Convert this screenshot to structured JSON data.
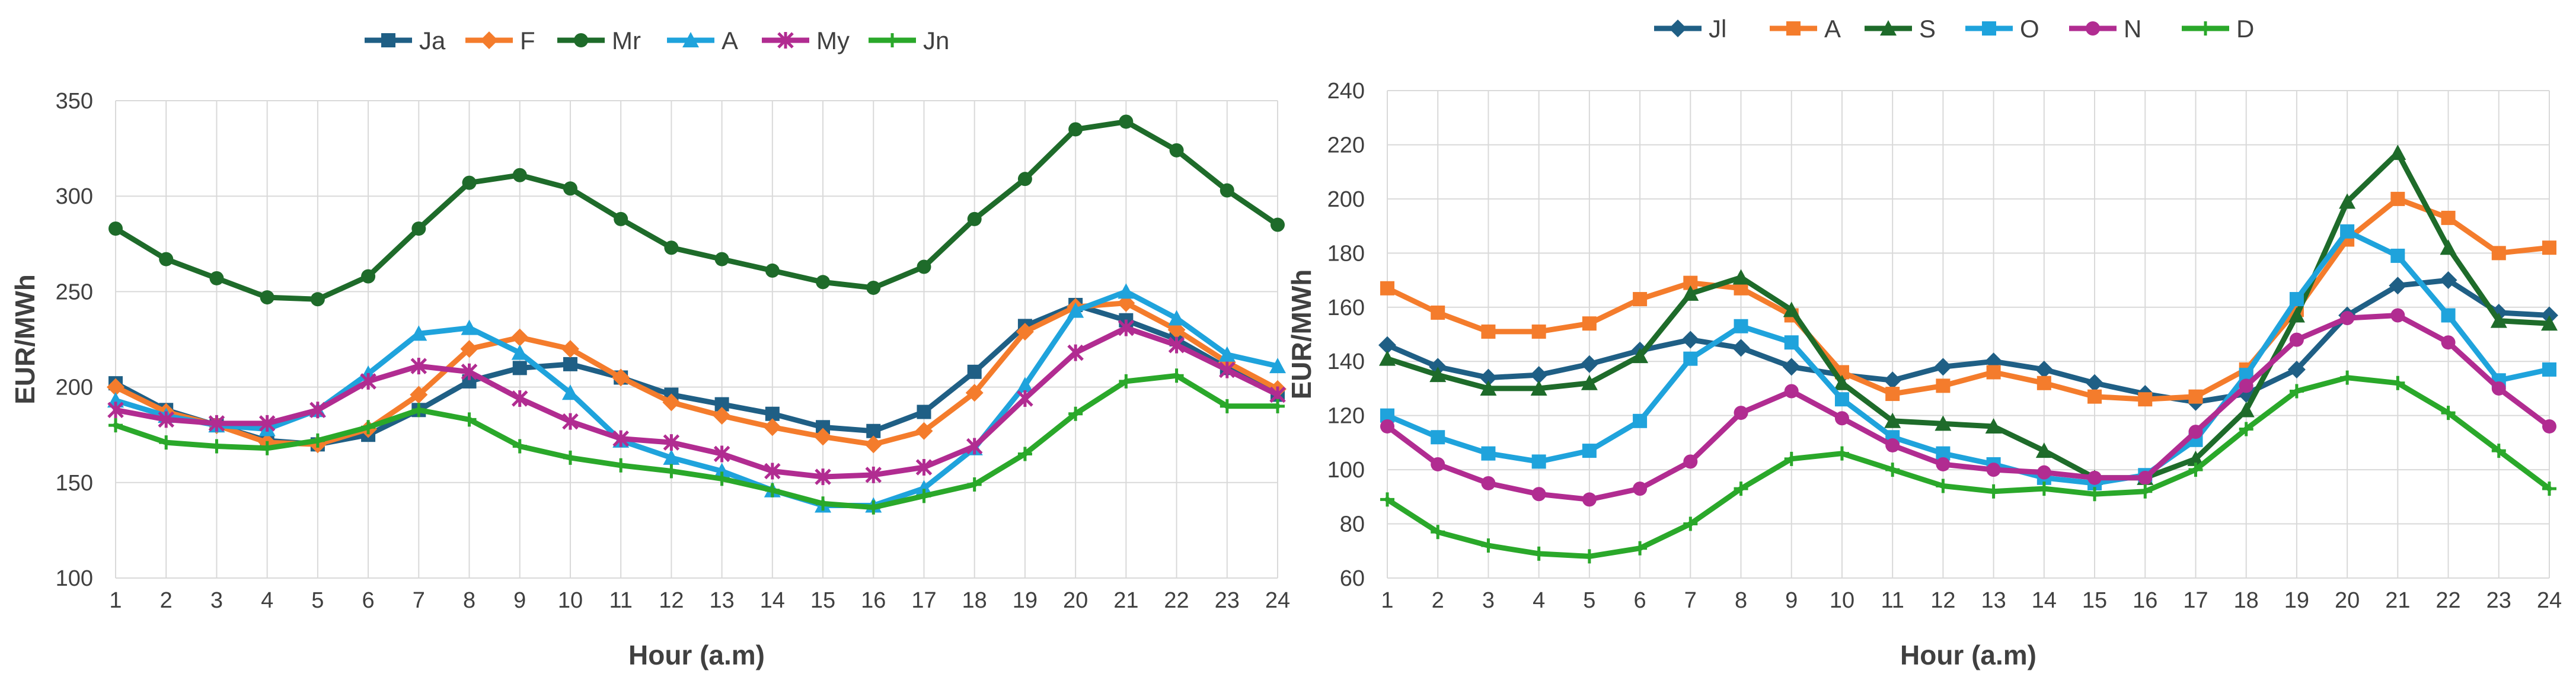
{
  "chart_data": [
    {
      "type": "line",
      "title": "",
      "xlabel": "Hour (a.m)",
      "ylabel": "EUR/MWh",
      "categories": [
        "1",
        "2",
        "3",
        "4",
        "5",
        "6",
        "7",
        "8",
        "9",
        "10",
        "11",
        "12",
        "13",
        "14",
        "15",
        "16",
        "17",
        "18",
        "19",
        "20",
        "21",
        "22",
        "23",
        "24"
      ],
      "ylim": [
        100,
        350
      ],
      "yticks": [
        100,
        150,
        200,
        250,
        300,
        350
      ],
      "grid": true,
      "legend_position": "top",
      "series": [
        {
          "name": "Ja",
          "color": "#1f5f85",
          "marker": "square",
          "values": [
            202,
            188,
            180,
            172,
            170,
            175,
            188,
            203,
            210,
            212,
            205,
            196,
            191,
            186,
            179,
            177,
            187,
            208,
            232,
            243,
            235,
            225,
            210,
            196
          ]
        },
        {
          "name": "F",
          "color": "#f47c2c",
          "marker": "diamond",
          "values": [
            200,
            187,
            180,
            171,
            170,
            178,
            196,
            220,
            226,
            220,
            205,
            192,
            185,
            179,
            174,
            170,
            177,
            197,
            229,
            242,
            244,
            230,
            213,
            199
          ]
        },
        {
          "name": "Mr",
          "color": "#1e6b2a",
          "marker": "circle",
          "values": [
            283,
            267,
            257,
            247,
            246,
            258,
            283,
            307,
            311,
            304,
            288,
            273,
            267,
            261,
            255,
            252,
            263,
            288,
            309,
            335,
            339,
            324,
            303,
            285
          ]
        },
        {
          "name": "A",
          "color": "#1fa3dc",
          "marker": "triangle",
          "values": [
            193,
            185,
            180,
            178,
            188,
            207,
            228,
            231,
            218,
            197,
            172,
            163,
            156,
            146,
            138,
            138,
            147,
            168,
            201,
            240,
            250,
            236,
            217,
            211
          ]
        },
        {
          "name": "My",
          "color": "#b12c91",
          "marker": "star",
          "values": [
            188,
            183,
            181,
            181,
            188,
            203,
            211,
            208,
            194,
            182,
            173,
            171,
            165,
            156,
            153,
            154,
            158,
            169,
            194,
            218,
            231,
            222,
            209,
            196
          ]
        },
        {
          "name": "Jn",
          "color": "#2aa82a",
          "marker": "plus",
          "values": [
            180,
            171,
            169,
            168,
            172,
            179,
            188,
            183,
            169,
            163,
            159,
            156,
            152,
            146,
            139,
            137,
            143,
            149,
            165,
            186,
            203,
            206,
            190,
            190
          ]
        }
      ]
    },
    {
      "type": "line",
      "title": "",
      "xlabel": "Hour (a.m)",
      "ylabel": "EUR/MWh",
      "categories": [
        "1",
        "2",
        "3",
        "4",
        "5",
        "6",
        "7",
        "8",
        "9",
        "10",
        "11",
        "12",
        "13",
        "14",
        "15",
        "16",
        "17",
        "18",
        "19",
        "20",
        "21",
        "22",
        "23",
        "24"
      ],
      "ylim": [
        60,
        240
      ],
      "yticks": [
        60,
        80,
        100,
        120,
        140,
        160,
        180,
        200,
        220,
        240
      ],
      "grid": true,
      "legend_position": "top",
      "series": [
        {
          "name": "Jl",
          "color": "#1f5f85",
          "marker": "diamond",
          "values": [
            146,
            138,
            134,
            135,
            139,
            144,
            148,
            145,
            138,
            135,
            133,
            138,
            140,
            137,
            132,
            128,
            125,
            128,
            137,
            157,
            168,
            170,
            158,
            157
          ]
        },
        {
          "name": "A",
          "color": "#f47c2c",
          "marker": "square",
          "values": [
            167,
            158,
            151,
            151,
            154,
            163,
            169,
            167,
            157,
            136,
            128,
            131,
            136,
            132,
            127,
            126,
            127,
            137,
            159,
            185,
            200,
            193,
            180,
            182
          ]
        },
        {
          "name": "S",
          "color": "#1e6b2a",
          "marker": "triangle",
          "values": [
            141,
            135,
            130,
            130,
            132,
            142,
            165,
            171,
            159,
            132,
            118,
            117,
            116,
            107,
            97,
            97,
            104,
            122,
            157,
            199,
            217,
            182,
            155,
            154
          ]
        },
        {
          "name": "O",
          "color": "#1fa3dc",
          "marker": "square",
          "values": [
            120,
            112,
            106,
            103,
            107,
            118,
            141,
            153,
            147,
            126,
            112,
            106,
            102,
            97,
            95,
            98,
            111,
            135,
            163,
            188,
            179,
            157,
            133,
            137
          ]
        },
        {
          "name": "N",
          "color": "#b12c91",
          "marker": "circle",
          "values": [
            116,
            102,
            95,
            91,
            89,
            93,
            103,
            121,
            129,
            119,
            109,
            102,
            100,
            99,
            97,
            97,
            114,
            131,
            148,
            156,
            157,
            147,
            130,
            116
          ]
        },
        {
          "name": "D",
          "color": "#2aa82a",
          "marker": "plus",
          "values": [
            89,
            77,
            72,
            69,
            68,
            71,
            80,
            93,
            104,
            106,
            100,
            94,
            92,
            93,
            91,
            92,
            100,
            115,
            129,
            134,
            132,
            121,
            107,
            93
          ]
        }
      ]
    }
  ]
}
